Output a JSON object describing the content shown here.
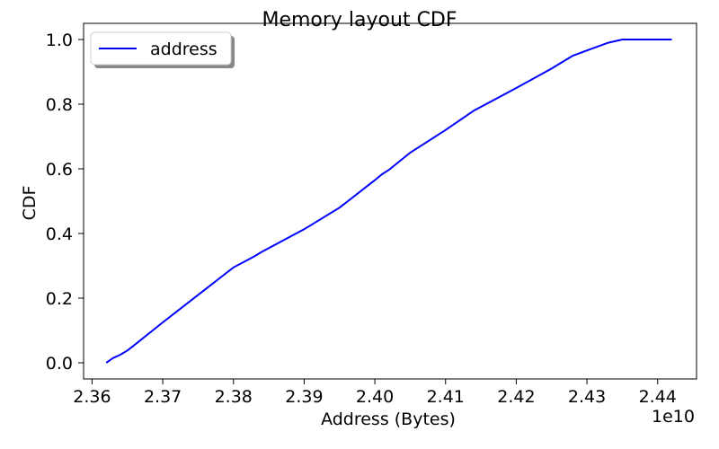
{
  "chart_data": {
    "type": "line",
    "title": "Memory layout CDF",
    "xlabel": "Address (Bytes)",
    "ylabel": "CDF",
    "x_offset_label": "1e10",
    "xlim": [
      2.3588,
      2.4455
    ],
    "ylim": [
      -0.05,
      1.05
    ],
    "x_ticks": [
      2.36,
      2.37,
      2.38,
      2.39,
      2.4,
      2.41,
      2.42,
      2.43,
      2.44
    ],
    "x_tick_labels": [
      "2.36",
      "2.37",
      "2.38",
      "2.39",
      "2.40",
      "2.41",
      "2.42",
      "2.43",
      "2.44"
    ],
    "y_ticks": [
      0.0,
      0.2,
      0.4,
      0.6,
      0.8,
      1.0
    ],
    "y_tick_labels": [
      "0.0",
      "0.2",
      "0.4",
      "0.6",
      "0.8",
      "1.0"
    ],
    "grid": false,
    "legend_position": "top-left",
    "series": [
      {
        "name": "address",
        "color": "#0000ff",
        "x": [
          2.362,
          2.363,
          2.364,
          2.365,
          2.366,
          2.37,
          2.375,
          2.38,
          2.382,
          2.383,
          2.384,
          2.39,
          2.395,
          2.4,
          2.401,
          2.402,
          2.405,
          2.41,
          2.414,
          2.42,
          2.425,
          2.428,
          2.43,
          2.433,
          2.435,
          2.442
        ],
        "y": [
          0.0,
          0.015,
          0.025,
          0.038,
          0.055,
          0.125,
          0.21,
          0.295,
          0.318,
          0.33,
          0.343,
          0.413,
          0.48,
          0.565,
          0.583,
          0.597,
          0.65,
          0.72,
          0.78,
          0.85,
          0.91,
          0.95,
          0.966,
          0.99,
          1.0,
          1.0
        ]
      }
    ]
  }
}
